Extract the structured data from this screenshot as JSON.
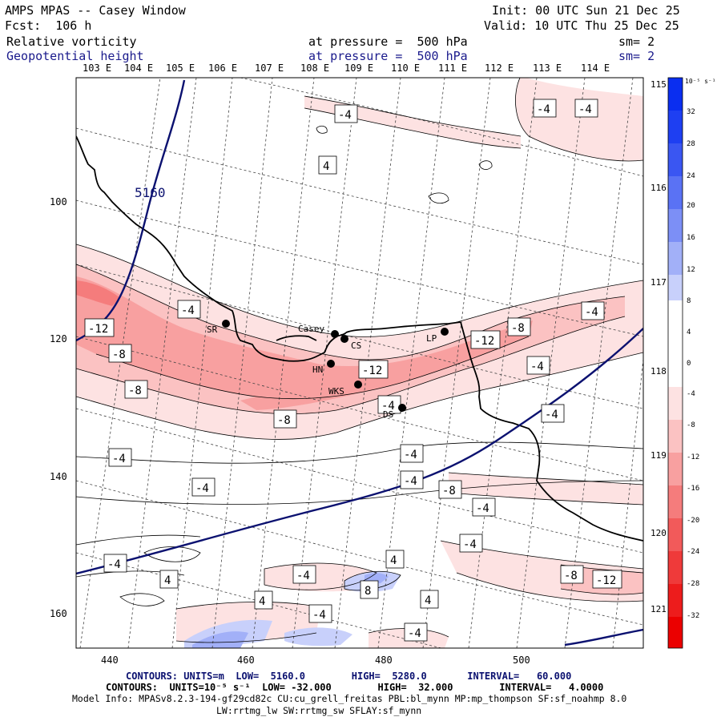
{
  "header": {
    "model_title": "AMPS MPAS -- Casey Window",
    "init": "Init: 00 UTC Sun 21 Dec 25",
    "forecast": "Fcst:  106 h",
    "valid": "Valid: 10 UTC Thu 25 Dec 25",
    "field1_name": "Relative vorticity",
    "field1_level": "at pressure =  500 hPa",
    "field1_smooth": "sm= 2",
    "field2_name": "Geopotential height",
    "field2_level": "at pressure =  500 hPa",
    "field2_smooth": "sm= 2"
  },
  "map": {
    "lon_labels_top": [
      "103 E",
      "104 E",
      "105 E",
      "106 E",
      "107 E",
      "108 E",
      "109 E",
      "110 E",
      "111 E",
      "112 E",
      "113 E",
      "114 E"
    ],
    "lon_labels_right": [
      "115 E",
      "116 E",
      "117 E",
      "118 E",
      "119 E",
      "120 E",
      "121 E"
    ],
    "y_ticks": [
      "100",
      "120",
      "140",
      "160"
    ],
    "x_ticks": [
      "440",
      "460",
      "480",
      "500"
    ],
    "stations": [
      {
        "name": "SR"
      },
      {
        "name": "Casey"
      },
      {
        "name": "CS"
      },
      {
        "name": "HN"
      },
      {
        "name": "WKS"
      },
      {
        "name": "DS"
      },
      {
        "name": "LP"
      }
    ],
    "contour_labels": [
      {
        "text": "-4"
      },
      {
        "text": "-4"
      },
      {
        "text": "-4"
      },
      {
        "text": "4"
      },
      {
        "text": "-4"
      },
      {
        "text": "-12"
      },
      {
        "text": "-8"
      },
      {
        "text": "-8"
      },
      {
        "text": "-12"
      },
      {
        "text": "-8"
      },
      {
        "text": "-12"
      },
      {
        "text": "-4"
      },
      {
        "text": "-4"
      },
      {
        "text": "-4"
      },
      {
        "text": "-8"
      },
      {
        "text": "-4"
      },
      {
        "text": "-4"
      },
      {
        "text": "-4"
      },
      {
        "text": "-4"
      },
      {
        "text": "-8"
      },
      {
        "text": "-4"
      },
      {
        "text": "-4"
      },
      {
        "text": "-4"
      },
      {
        "text": "-4"
      },
      {
        "text": "4"
      },
      {
        "text": "-4"
      },
      {
        "text": "4"
      },
      {
        "text": "8"
      },
      {
        "text": "4"
      },
      {
        "text": "4"
      },
      {
        "text": "-4"
      },
      {
        "text": "-4"
      },
      {
        "text": "-8"
      },
      {
        "text": "-12"
      }
    ],
    "height_label": "5160"
  },
  "colorbar": {
    "unit": "10⁻⁵ s⁻¹",
    "labels": [
      "32",
      "28",
      "24",
      "20",
      "16",
      "12",
      "8",
      "4",
      "0",
      "-4",
      "-8",
      "-12",
      "-16",
      "-20",
      "-24",
      "-28",
      "-32"
    ],
    "colors": [
      "#0a2ef0",
      "#1e3ff2",
      "#3a56f2",
      "#5a72f4",
      "#7c8ff6",
      "#a2b0f8",
      "#c8d0fb",
      "#ffffff",
      "#ffffff",
      "#fde2e2",
      "#fbc2c2",
      "#f8a0a0",
      "#f57c7c",
      "#f25a5a",
      "#ef3a3a",
      "#ed1c1c",
      "#eb0000"
    ]
  },
  "footer": {
    "line1": "CONTOURS: UNITS=m  LOW=  5160.0        HIGH=  5280.0       INTERVAL=   60.000",
    "line2": "CONTOURS:  UNITS=10⁻⁵ s⁻¹  LOW= -32.000        HIGH=  32.000        INTERVAL=   4.0000",
    "line3": "Model Info: MPASv8.2.3-194-gf29cd82c CU:cu_grell_freitas PBL:bl_mynn MP:mp_thompson SF:sf_noahmp 8.0",
    "line4": "LW:rrtmg_lw SW:rrtmg_sw SFLAY:sf_mynn"
  }
}
